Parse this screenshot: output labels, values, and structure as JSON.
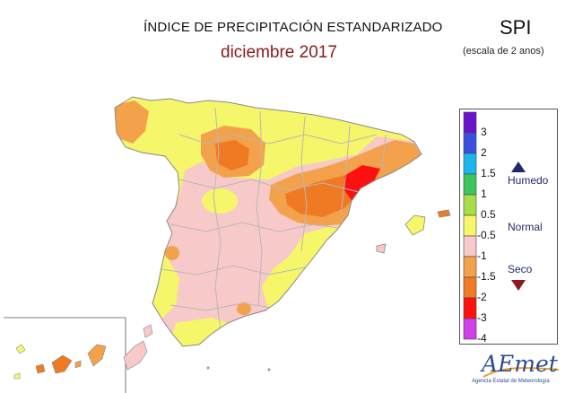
{
  "header": {
    "title": "ÍNDICE DE PRECIPITACIÓN ESTANDARIZADO",
    "subtitle": "diciembre 2017",
    "index": "SPI",
    "scale_note": "(escala de 2 anos)"
  },
  "legend": {
    "classes": [
      {
        "label": "3",
        "color": "#6a12cc"
      },
      {
        "label": "2",
        "color": "#3a4ee0"
      },
      {
        "label": "1.5",
        "color": "#1ab6ee"
      },
      {
        "label": "1",
        "color": "#3ec45c"
      },
      {
        "label": "0.5",
        "color": "#a8dd4a"
      },
      {
        "label": "-0.5",
        "color": "#f6f66a"
      },
      {
        "label": "-1",
        "color": "#f7c9c9"
      },
      {
        "label": "-1.5",
        "color": "#f3a14a"
      },
      {
        "label": "-2",
        "color": "#f07a24"
      },
      {
        "label": "-3",
        "color": "#ff1010"
      },
      {
        "label": "-4",
        "color": "#d040e8"
      }
    ],
    "categories": {
      "humid": "Humedo",
      "normal": "Normal",
      "dry": "Seco"
    }
  },
  "logo": {
    "name": "AEmet",
    "tagline": "Agencia Estatal de Meteorología"
  }
}
